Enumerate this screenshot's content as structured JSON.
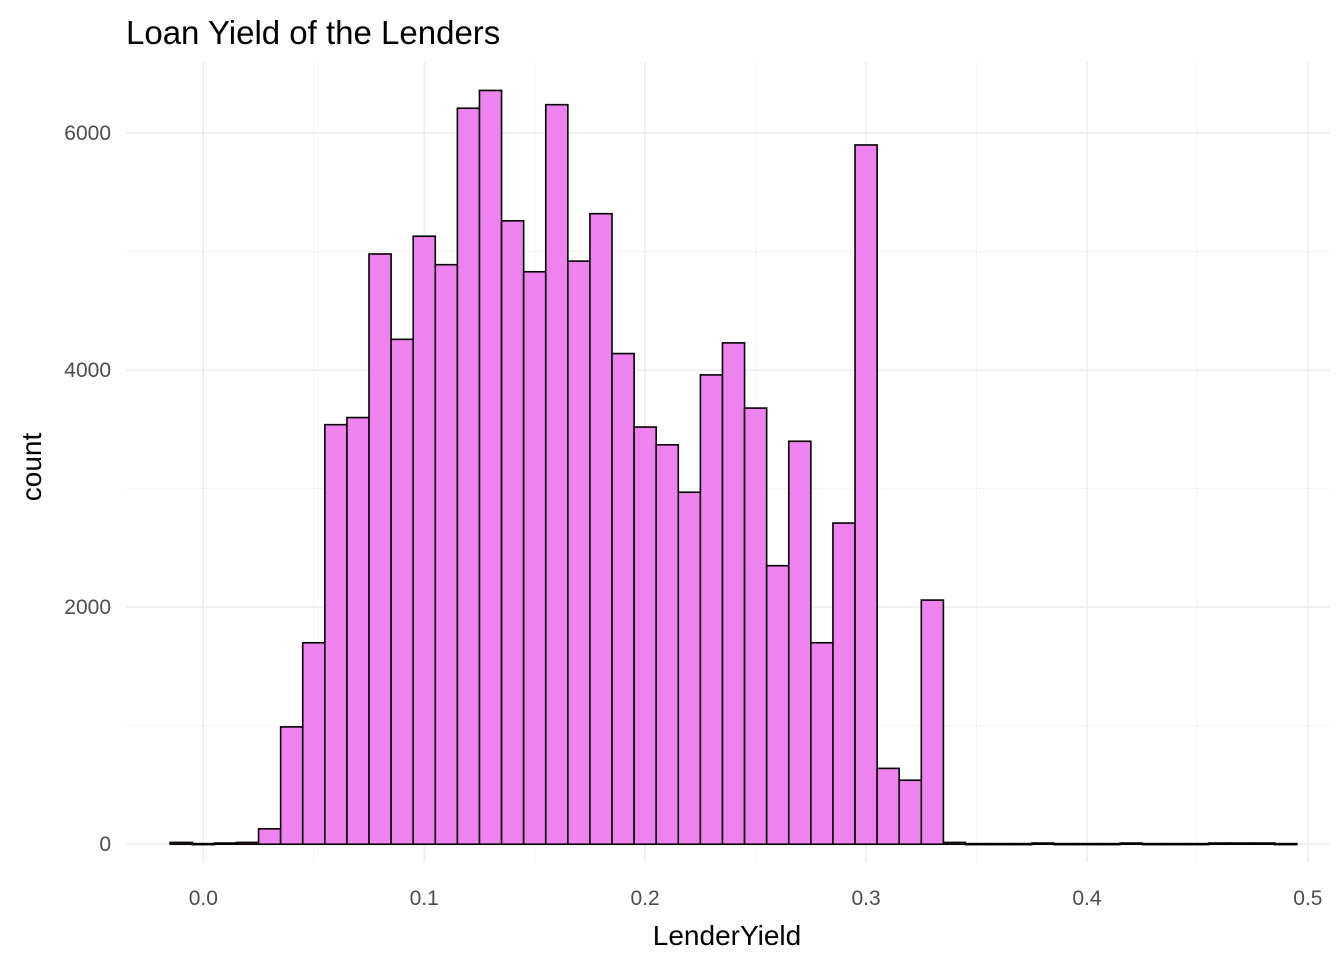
{
  "chart_data": {
    "type": "bar",
    "title": "Loan Yield of the Lenders",
    "xlabel": "LenderYield",
    "ylabel": "count",
    "xlim": [
      -0.035,
      0.51
    ],
    "ylim": [
      -150,
      6600
    ],
    "x_ticks": [
      0.0,
      0.1,
      0.2,
      0.3,
      0.4,
      0.5
    ],
    "x_tick_labels": [
      "0.0",
      "0.1",
      "0.2",
      "0.3",
      "0.4",
      "0.5"
    ],
    "y_ticks": [
      0,
      2000,
      4000,
      6000
    ],
    "y_tick_labels": [
      "0",
      "2000",
      "4000",
      "6000"
    ],
    "grid": true,
    "legend": "none",
    "fill_color": "#ee82ee",
    "outline_color": "#000000",
    "bin_width": 0.01,
    "bin_start": -0.015,
    "values": [
      15,
      5,
      10,
      15,
      130,
      990,
      1700,
      3540,
      3600,
      4980,
      4260,
      5130,
      4890,
      6210,
      6360,
      5260,
      4830,
      6240,
      4920,
      5320,
      4140,
      3520,
      3370,
      2970,
      3960,
      4230,
      3680,
      2350,
      3400,
      1700,
      2710,
      5900,
      640,
      540,
      2060,
      15,
      5,
      5,
      5,
      10,
      5,
      5,
      5,
      10,
      5,
      5,
      5,
      10,
      10,
      10,
      5
    ]
  }
}
